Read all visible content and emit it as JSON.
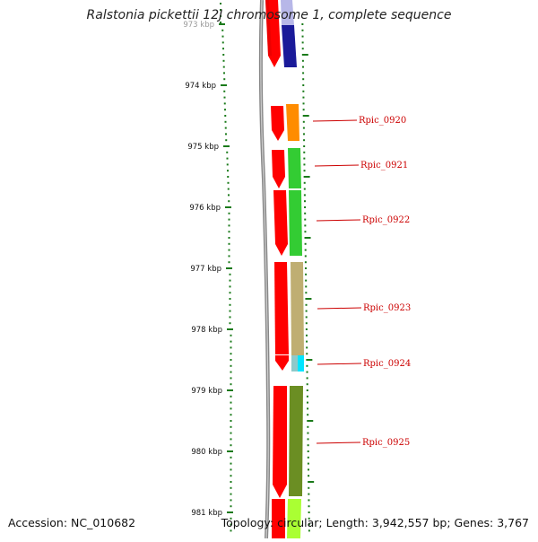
{
  "title": "Ralstonia pickettii 12J chromosome 1, complete sequence",
  "accession": "Accession: NC_010682",
  "topology": "Topology: circular; Length: 3,942,557 bp; Genes: 3,767",
  "axis_labels": [
    "973 kbp",
    "974 kbp",
    "975 kbp",
    "976 kbp",
    "977 kbp",
    "978 kbp",
    "979 kbp",
    "980 kbp",
    "981 kbp"
  ],
  "genes": [
    {
      "label": "Rpic_0920",
      "color": "#ff8c00"
    },
    {
      "label": "Rpic_0921",
      "color": "#33cc33"
    },
    {
      "label": "Rpic_0922",
      "color": "#33cc33"
    },
    {
      "label": "Rpic_0923",
      "color": "#bfae72"
    },
    {
      "label": "Rpic_0924",
      "color": "#00e5ff"
    },
    {
      "label": "Rpic_0925",
      "color": "#6b8e23"
    }
  ],
  "colors": {
    "cds": "#ff0000",
    "cds_top_dark": "#e60000",
    "top_blue": "#3333aa",
    "last_gene": "#aaff33",
    "backbone": "#888888",
    "ticks": "#1a7a1a",
    "label_line": "#cc0000"
  }
}
